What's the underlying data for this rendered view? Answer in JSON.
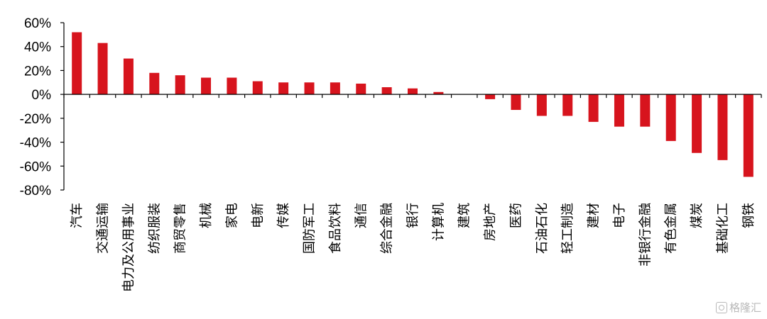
{
  "chart_data": {
    "type": "bar",
    "categories": [
      "汽车",
      "交通运输",
      "电力及公用事业",
      "纺织服装",
      "商贸零售",
      "机械",
      "家电",
      "电新",
      "传媒",
      "国防军工",
      "食品饮料",
      "通信",
      "综合金融",
      "银行",
      "计算机",
      "建筑",
      "房地产",
      "医药",
      "石油石化",
      "轻工制造",
      "建材",
      "电子",
      "非银行金融",
      "有色金属",
      "煤炭",
      "基础化工",
      "钢铁"
    ],
    "values": [
      52,
      43,
      30,
      18,
      16,
      14,
      14,
      11,
      10,
      10,
      10,
      9,
      6,
      5,
      2,
      0,
      -4,
      -13,
      -18,
      -18,
      -23,
      -27,
      -27,
      -39,
      -49,
      -55,
      -69
    ],
    "ylim": [
      -80,
      60
    ],
    "yticks": [
      "60%",
      "40%",
      "20%",
      "0%",
      "-20%",
      "-40%",
      "-60%",
      "-80%"
    ],
    "ytick_values": [
      60,
      40,
      20,
      0,
      -20,
      -40,
      -60,
      -80
    ],
    "bar_color": "#D7141D",
    "grid": false,
    "legend": "none"
  },
  "watermark": {
    "text": "格隆汇",
    "icon": "watermark-logo-icon"
  }
}
